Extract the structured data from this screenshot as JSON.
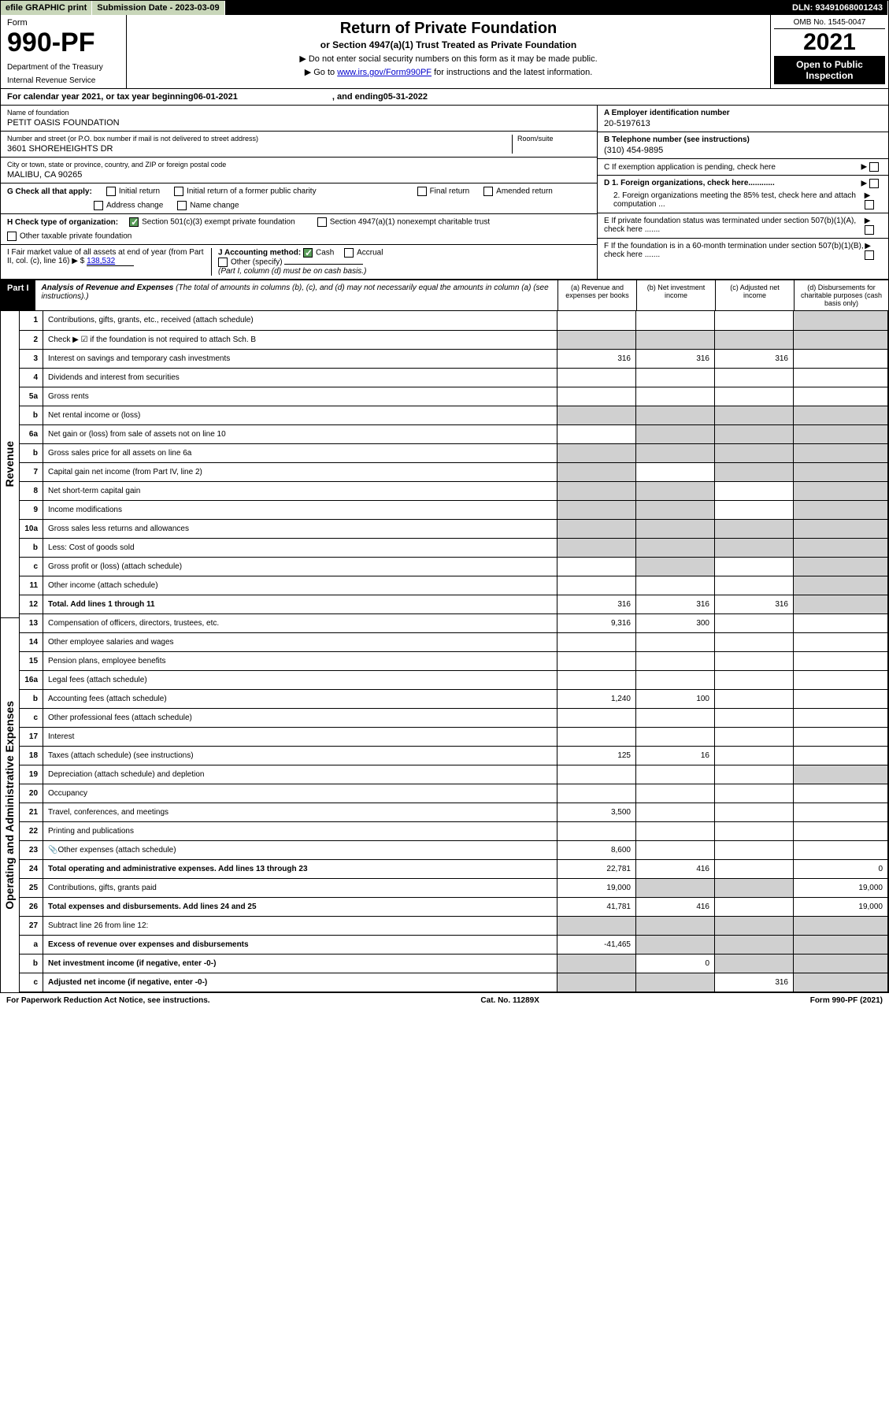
{
  "topbar": {
    "efile": "efile GRAPHIC print",
    "submission_label": "Submission Date - 2023-03-09",
    "dln": "DLN: 93491068001243"
  },
  "header": {
    "form_label": "Form",
    "form_number": "990-PF",
    "dept1": "Department of the Treasury",
    "dept2": "Internal Revenue Service",
    "title": "Return of Private Foundation",
    "subtitle": "or Section 4947(a)(1) Trust Treated as Private Foundation",
    "note1": "▶ Do not enter social security numbers on this form as it may be made public.",
    "note2_prefix": "▶ Go to ",
    "note2_link": "www.irs.gov/Form990PF",
    "note2_suffix": " for instructions and the latest information.",
    "omb": "OMB No. 1545-0047",
    "year": "2021",
    "inspection": "Open to Public Inspection"
  },
  "cal_year": {
    "prefix": "For calendar year 2021, or tax year beginning ",
    "begin": "06-01-2021",
    "mid": ", and ending ",
    "end": "05-31-2022"
  },
  "info": {
    "name_lbl": "Name of foundation",
    "name_val": "PETIT OASIS FOUNDATION",
    "addr_lbl": "Number and street (or P.O. box number if mail is not delivered to street address)",
    "addr_val": "3601 SHOREHEIGHTS DR",
    "room_lbl": "Room/suite",
    "city_lbl": "City or town, state or province, country, and ZIP or foreign postal code",
    "city_val": "MALIBU, CA  90265",
    "a_lbl": "A Employer identification number",
    "a_val": "20-5197613",
    "b_lbl": "B Telephone number (see instructions)",
    "b_val": "(310) 454-9895",
    "c_lbl": "C If exemption application is pending, check here",
    "d1_lbl": "D 1. Foreign organizations, check here............",
    "d2_lbl": "2. Foreign organizations meeting the 85% test, check here and attach computation ...",
    "e_lbl": "E  If private foundation status was terminated under section 507(b)(1)(A), check here .......",
    "f_lbl": "F  If the foundation is in a 60-month termination under section 507(b)(1)(B), check here .......",
    "g_lbl": "G Check all that apply:",
    "g_opts": [
      "Initial return",
      "Initial return of a former public charity",
      "Final return",
      "Amended return",
      "Address change",
      "Name change"
    ],
    "h_lbl": "H Check type of organization:",
    "h_opt1": "Section 501(c)(3) exempt private foundation",
    "h_opt2": "Section 4947(a)(1) nonexempt charitable trust",
    "h_opt3": "Other taxable private foundation",
    "i_lbl": "I Fair market value of all assets at end of year (from Part II, col. (c), line 16) ▶ $",
    "i_val": "138,532",
    "j_lbl": "J Accounting method:",
    "j_opt1": "Cash",
    "j_opt2": "Accrual",
    "j_opt3": "Other (specify)",
    "j_note": "(Part I, column (d) must be on cash basis.)"
  },
  "part1": {
    "header": "Part I",
    "title": "Analysis of Revenue and Expenses",
    "desc": "(The total of amounts in columns (b), (c), and (d) may not necessarily equal the amounts in column (a) (see instructions).)",
    "col_a": "(a) Revenue and expenses per books",
    "col_b": "(b) Net investment income",
    "col_c": "(c) Adjusted net income",
    "col_d": "(d) Disbursements for charitable purposes (cash basis only)"
  },
  "side_labels": {
    "revenue": "Revenue",
    "expenses": "Operating and Administrative Expenses"
  },
  "rows": [
    {
      "n": "1",
      "label": "Contributions, gifts, grants, etc., received (attach schedule)",
      "a": "",
      "b": "",
      "c": "",
      "d": "",
      "d_shade": true
    },
    {
      "n": "2",
      "label": "Check ▶ ☑ if the foundation is not required to attach Sch. B",
      "a": "",
      "b": "",
      "c": "",
      "d": "",
      "shade_all": true
    },
    {
      "n": "3",
      "label": "Interest on savings and temporary cash investments",
      "a": "316",
      "b": "316",
      "c": "316",
      "d": ""
    },
    {
      "n": "4",
      "label": "Dividends and interest from securities",
      "a": "",
      "b": "",
      "c": "",
      "d": ""
    },
    {
      "n": "5a",
      "label": "Gross rents",
      "a": "",
      "b": "",
      "c": "",
      "d": ""
    },
    {
      "n": "b",
      "label": "Net rental income or (loss)",
      "a": "",
      "b": "",
      "c": "",
      "d": "",
      "shade_all": true
    },
    {
      "n": "6a",
      "label": "Net gain or (loss) from sale of assets not on line 10",
      "a": "",
      "b": "",
      "c": "",
      "d": "",
      "b_shade": true,
      "c_shade": true,
      "d_shade": true
    },
    {
      "n": "b",
      "label": "Gross sales price for all assets on line 6a",
      "a": "",
      "b": "",
      "c": "",
      "d": "",
      "shade_all": true
    },
    {
      "n": "7",
      "label": "Capital gain net income (from Part IV, line 2)",
      "a": "",
      "b": "",
      "c": "",
      "d": "",
      "a_shade": true,
      "c_shade": true,
      "d_shade": true
    },
    {
      "n": "8",
      "label": "Net short-term capital gain",
      "a": "",
      "b": "",
      "c": "",
      "d": "",
      "a_shade": true,
      "b_shade": true,
      "d_shade": true
    },
    {
      "n": "9",
      "label": "Income modifications",
      "a": "",
      "b": "",
      "c": "",
      "d": "",
      "a_shade": true,
      "b_shade": true,
      "d_shade": true
    },
    {
      "n": "10a",
      "label": "Gross sales less returns and allowances",
      "a": "",
      "b": "",
      "c": "",
      "d": "",
      "shade_all": true
    },
    {
      "n": "b",
      "label": "Less: Cost of goods sold",
      "a": "",
      "b": "",
      "c": "",
      "d": "",
      "shade_all": true
    },
    {
      "n": "c",
      "label": "Gross profit or (loss) (attach schedule)",
      "a": "",
      "b": "",
      "c": "",
      "d": "",
      "b_shade": true,
      "d_shade": true
    },
    {
      "n": "11",
      "label": "Other income (attach schedule)",
      "a": "",
      "b": "",
      "c": "",
      "d": "",
      "d_shade": true
    },
    {
      "n": "12",
      "label": "Total. Add lines 1 through 11",
      "bold": true,
      "a": "316",
      "b": "316",
      "c": "316",
      "d": "",
      "d_shade": true
    },
    {
      "n": "13",
      "label": "Compensation of officers, directors, trustees, etc.",
      "a": "9,316",
      "b": "300",
      "c": "",
      "d": ""
    },
    {
      "n": "14",
      "label": "Other employee salaries and wages",
      "a": "",
      "b": "",
      "c": "",
      "d": ""
    },
    {
      "n": "15",
      "label": "Pension plans, employee benefits",
      "a": "",
      "b": "",
      "c": "",
      "d": ""
    },
    {
      "n": "16a",
      "label": "Legal fees (attach schedule)",
      "a": "",
      "b": "",
      "c": "",
      "d": ""
    },
    {
      "n": "b",
      "label": "Accounting fees (attach schedule)",
      "a": "1,240",
      "b": "100",
      "c": "",
      "d": ""
    },
    {
      "n": "c",
      "label": "Other professional fees (attach schedule)",
      "a": "",
      "b": "",
      "c": "",
      "d": ""
    },
    {
      "n": "17",
      "label": "Interest",
      "a": "",
      "b": "",
      "c": "",
      "d": ""
    },
    {
      "n": "18",
      "label": "Taxes (attach schedule) (see instructions)",
      "a": "125",
      "b": "16",
      "c": "",
      "d": ""
    },
    {
      "n": "19",
      "label": "Depreciation (attach schedule) and depletion",
      "a": "",
      "b": "",
      "c": "",
      "d": "",
      "d_shade": true
    },
    {
      "n": "20",
      "label": "Occupancy",
      "a": "",
      "b": "",
      "c": "",
      "d": ""
    },
    {
      "n": "21",
      "label": "Travel, conferences, and meetings",
      "a": "3,500",
      "b": "",
      "c": "",
      "d": ""
    },
    {
      "n": "22",
      "label": "Printing and publications",
      "a": "",
      "b": "",
      "c": "",
      "d": ""
    },
    {
      "n": "23",
      "label": "Other expenses (attach schedule)",
      "a": "8,600",
      "b": "",
      "c": "",
      "d": "",
      "icon": true
    },
    {
      "n": "24",
      "label": "Total operating and administrative expenses. Add lines 13 through 23",
      "bold": true,
      "a": "22,781",
      "b": "416",
      "c": "",
      "d": "0"
    },
    {
      "n": "25",
      "label": "Contributions, gifts, grants paid",
      "a": "19,000",
      "b": "",
      "c": "",
      "d": "19,000",
      "b_shade": true,
      "c_shade": true
    },
    {
      "n": "26",
      "label": "Total expenses and disbursements. Add lines 24 and 25",
      "bold": true,
      "a": "41,781",
      "b": "416",
      "c": "",
      "d": "19,000"
    },
    {
      "n": "27",
      "label": "Subtract line 26 from line 12:",
      "a": "",
      "b": "",
      "c": "",
      "d": "",
      "shade_all": true
    },
    {
      "n": "a",
      "label": "Excess of revenue over expenses and disbursements",
      "bold": true,
      "a": "-41,465",
      "b": "",
      "c": "",
      "d": "",
      "b_shade": true,
      "c_shade": true,
      "d_shade": true
    },
    {
      "n": "b",
      "label": "Net investment income (if negative, enter -0-)",
      "bold": true,
      "a": "",
      "b": "0",
      "c": "",
      "d": "",
      "a_shade": true,
      "c_shade": true,
      "d_shade": true
    },
    {
      "n": "c",
      "label": "Adjusted net income (if negative, enter -0-)",
      "bold": true,
      "a": "",
      "b": "",
      "c": "316",
      "d": "",
      "a_shade": true,
      "b_shade": true,
      "d_shade": true
    }
  ],
  "footer": {
    "left": "For Paperwork Reduction Act Notice, see instructions.",
    "center": "Cat. No. 11289X",
    "right": "Form 990-PF (2021)"
  },
  "colors": {
    "green_bg": "#c8d6b9",
    "check_green": "#5a9e5a",
    "shade": "#d0d0d0",
    "link": "#0000cc"
  }
}
